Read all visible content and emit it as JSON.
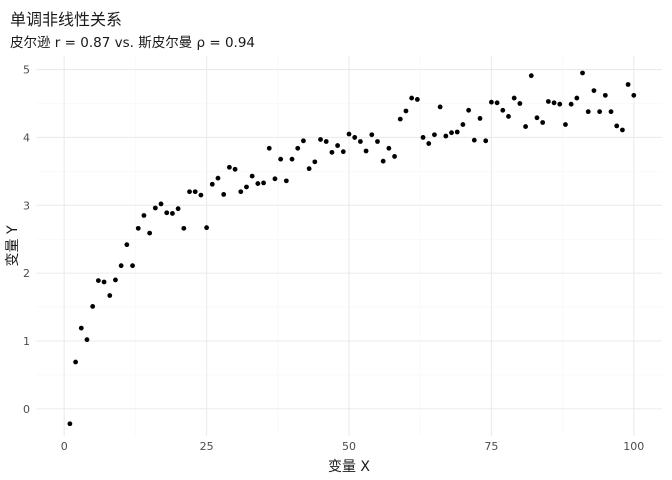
{
  "chart_data": {
    "type": "scatter",
    "title": "单调非线性关系",
    "subtitle": "皮尔逊 r = 0.87  vs. 斯皮尔曼 ρ = 0.94",
    "xlabel": "变量 X",
    "ylabel": "变量 Y",
    "xlim": [
      -4.95,
      104.95
    ],
    "ylim": [
      -0.4,
      5.2
    ],
    "x_ticks": [
      0,
      25,
      50,
      75,
      100
    ],
    "y_ticks": [
      0,
      1,
      2,
      3,
      4,
      5
    ],
    "grid": true,
    "legend": "none",
    "point_color": "#000000",
    "points": [
      [
        1,
        -0.22
      ],
      [
        2,
        0.69
      ],
      [
        3,
        1.19
      ],
      [
        4,
        1.02
      ],
      [
        5,
        1.51
      ],
      [
        6,
        1.89
      ],
      [
        7,
        1.87
      ],
      [
        8,
        1.67
      ],
      [
        9,
        1.9
      ],
      [
        10,
        2.11
      ],
      [
        11,
        2.42
      ],
      [
        12,
        2.11
      ],
      [
        13,
        2.66
      ],
      [
        14,
        2.85
      ],
      [
        15,
        2.59
      ],
      [
        16,
        2.96
      ],
      [
        17,
        3.02
      ],
      [
        18,
        2.89
      ],
      [
        19,
        2.88
      ],
      [
        20,
        2.95
      ],
      [
        21,
        2.66
      ],
      [
        22,
        3.2
      ],
      [
        23,
        3.2
      ],
      [
        24,
        3.15
      ],
      [
        25,
        2.67
      ],
      [
        26,
        3.31
      ],
      [
        27,
        3.4
      ],
      [
        28,
        3.16
      ],
      [
        29,
        3.56
      ],
      [
        30,
        3.53
      ],
      [
        31,
        3.2
      ],
      [
        32,
        3.27
      ],
      [
        33,
        3.43
      ],
      [
        34,
        3.32
      ],
      [
        35,
        3.33
      ],
      [
        36,
        3.84
      ],
      [
        37,
        3.39
      ],
      [
        38,
        3.68
      ],
      [
        39,
        3.36
      ],
      [
        40,
        3.68
      ],
      [
        41,
        3.84
      ],
      [
        42,
        3.95
      ],
      [
        43,
        3.54
      ],
      [
        44,
        3.64
      ],
      [
        45,
        3.97
      ],
      [
        46,
        3.94
      ],
      [
        47,
        3.78
      ],
      [
        48,
        3.88
      ],
      [
        49,
        3.79
      ],
      [
        50,
        4.05
      ],
      [
        51,
        4.0
      ],
      [
        52,
        3.94
      ],
      [
        53,
        3.8
      ],
      [
        54,
        4.04
      ],
      [
        55,
        3.94
      ],
      [
        56,
        3.65
      ],
      [
        57,
        3.84
      ],
      [
        58,
        3.72
      ],
      [
        59,
        4.27
      ],
      [
        60,
        4.39
      ],
      [
        61,
        4.58
      ],
      [
        62,
        4.56
      ],
      [
        63,
        4.0
      ],
      [
        64,
        3.91
      ],
      [
        65,
        4.04
      ],
      [
        66,
        4.45
      ],
      [
        67,
        4.02
      ],
      [
        68,
        4.07
      ],
      [
        69,
        4.08
      ],
      [
        70,
        4.19
      ],
      [
        71,
        4.4
      ],
      [
        72,
        3.96
      ],
      [
        73,
        4.28
      ],
      [
        74,
        3.95
      ],
      [
        75,
        4.52
      ],
      [
        76,
        4.51
      ],
      [
        77,
        4.4
      ],
      [
        78,
        4.31
      ],
      [
        79,
        4.58
      ],
      [
        80,
        4.5
      ],
      [
        81,
        4.16
      ],
      [
        82,
        4.91
      ],
      [
        83,
        4.29
      ],
      [
        84,
        4.22
      ],
      [
        85,
        4.53
      ],
      [
        86,
        4.51
      ],
      [
        87,
        4.49
      ],
      [
        88,
        4.19
      ],
      [
        89,
        4.49
      ],
      [
        90,
        4.58
      ],
      [
        91,
        4.95
      ],
      [
        92,
        4.38
      ],
      [
        93,
        4.69
      ],
      [
        94,
        4.38
      ],
      [
        95,
        4.62
      ],
      [
        96,
        4.38
      ],
      [
        97,
        4.17
      ],
      [
        98,
        4.11
      ],
      [
        99,
        4.78
      ],
      [
        100,
        4.62
      ]
    ]
  }
}
